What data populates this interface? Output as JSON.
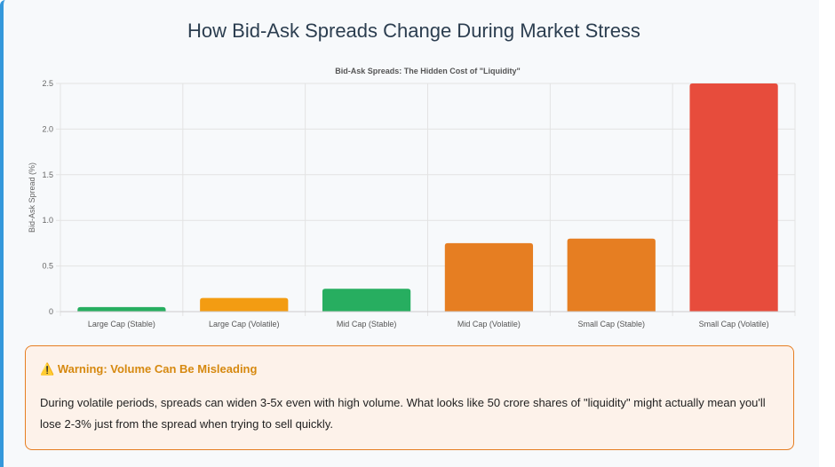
{
  "title": "How Bid-Ask Spreads Change During Market Stress",
  "chart_data": {
    "type": "bar",
    "title": "Bid-Ask Spreads: The Hidden Cost of \"Liquidity\"",
    "xlabel": "",
    "ylabel": "Bid-Ask Spread (%)",
    "ylim": [
      0,
      2.5
    ],
    "yticks": [
      "0",
      "0.5",
      "1.0",
      "1.5",
      "2.0",
      "2.5"
    ],
    "categories": [
      "Large Cap (Stable)",
      "Large Cap (Volatile)",
      "Mid Cap (Stable)",
      "Mid Cap (Volatile)",
      "Small Cap (Stable)",
      "Small Cap (Volatile)"
    ],
    "values": [
      0.05,
      0.15,
      0.25,
      0.75,
      0.8,
      2.5
    ],
    "colors": [
      "#27ae60",
      "#f39c12",
      "#27ae60",
      "#e67e22",
      "#e67e22",
      "#e74c3c"
    ],
    "grid": true
  },
  "warning": {
    "icon": "⚠️",
    "title": "Warning: Volume Can Be Misleading",
    "body": "During volatile periods, spreads can widen 3-5x even with high volume. What looks like 50 crore shares of \"liquidity\" might actually mean you'll lose 2-3% just from the spread when trying to sell quickly."
  }
}
